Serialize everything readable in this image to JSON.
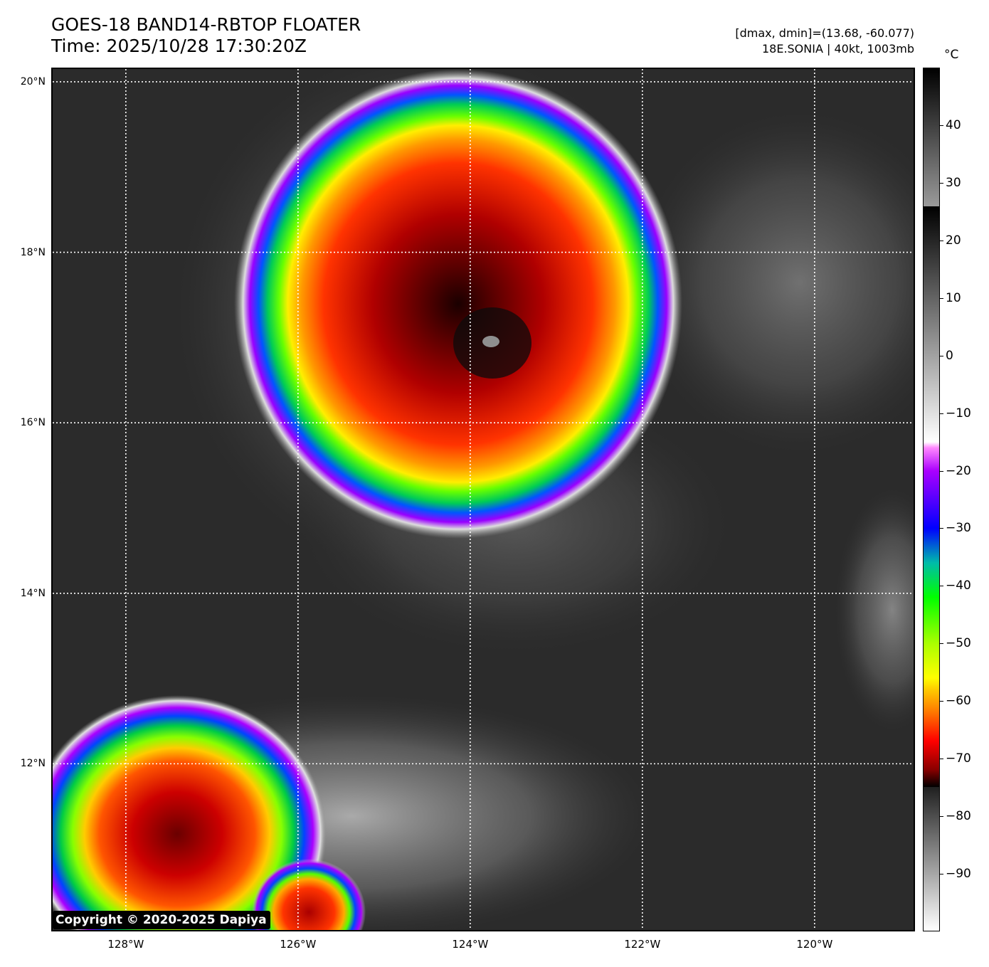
{
  "header": {
    "title_line1": "GOES-18 BAND14-RBTOP FLOATER",
    "title_line2": "Time: 2025/10/28 17:30:20Z",
    "info_line1": "[dmax, dmin]=(13.68, -60.077)",
    "info_line2": "18E.SONIA | 40kt, 1003mb"
  },
  "map": {
    "lat_range": [
      10.05,
      20.15
    ],
    "lon_range": [
      -128.85,
      -118.85
    ],
    "lat_labels": [
      {
        "value": 20,
        "text": "20°N"
      },
      {
        "value": 18,
        "text": "18°N"
      },
      {
        "value": 16,
        "text": "16°N"
      },
      {
        "value": 14,
        "text": "14°N"
      },
      {
        "value": 12,
        "text": "12°N"
      }
    ],
    "lon_labels": [
      {
        "value": -128,
        "text": "128°W"
      },
      {
        "value": -126,
        "text": "126°W"
      },
      {
        "value": -124,
        "text": "124°W"
      },
      {
        "value": -122,
        "text": "122°W"
      },
      {
        "value": -120,
        "text": "120°W"
      }
    ],
    "storm_center": {
      "lat": 17.0,
      "lon": -123.75
    },
    "grid": "dotted white"
  },
  "colorbar": {
    "unit": "°C",
    "range": [
      -100,
      50
    ],
    "ticks": [
      {
        "value": 40,
        "text": "40"
      },
      {
        "value": 30,
        "text": "30"
      },
      {
        "value": 20,
        "text": "20"
      },
      {
        "value": 10,
        "text": "10"
      },
      {
        "value": 0,
        "text": "0"
      },
      {
        "value": -10,
        "text": "−10"
      },
      {
        "value": -20,
        "text": "−20"
      },
      {
        "value": -30,
        "text": "−30"
      },
      {
        "value": -40,
        "text": "−40"
      },
      {
        "value": -50,
        "text": "−50"
      },
      {
        "value": -60,
        "text": "−60"
      },
      {
        "value": -70,
        "text": "−70"
      },
      {
        "value": -80,
        "text": "−80"
      },
      {
        "value": -90,
        "text": "−90"
      }
    ]
  },
  "copyright": "Copyright © 2020-2025 Dapiya"
}
